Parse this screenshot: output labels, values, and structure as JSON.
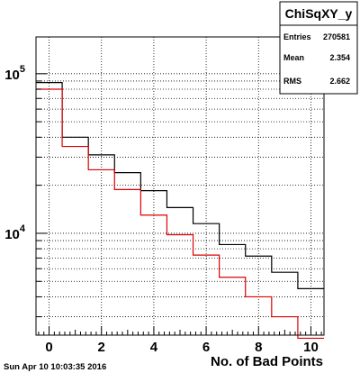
{
  "footer": {
    "timestamp": "Sun Apr 10 10:03:35 2016"
  },
  "stats_box": {
    "title": "ChiSqXY_y",
    "rows": [
      {
        "label": "Entries",
        "value": "270581"
      },
      {
        "label": "Mean",
        "value": "2.354"
      },
      {
        "label": "RMS",
        "value": "2.662"
      }
    ]
  },
  "chart_data": {
    "type": "histogram",
    "title": "",
    "xlabel": "No. of Bad Points",
    "ylabel": "",
    "xlim": [
      -0.5,
      10.5
    ],
    "ylim": [
      2300,
      170000
    ],
    "yscale": "log",
    "grid": true,
    "x_ticks": [
      0,
      2,
      4,
      6,
      8,
      10
    ],
    "y_tick_labels": [
      {
        "value": 10000,
        "base": "10",
        "exp": "4"
      },
      {
        "value": 100000,
        "base": "10",
        "exp": "5"
      }
    ],
    "bin_edges": [
      -0.5,
      0.5,
      1.5,
      2.5,
      3.5,
      4.5,
      5.5,
      6.5,
      7.5,
      8.5,
      9.5,
      10.5
    ],
    "series": [
      {
        "color": "#000000",
        "values": [
          88000,
          40000,
          31000,
          24000,
          18500,
          14500,
          11500,
          8500,
          7200,
          5700,
          4500
        ]
      },
      {
        "color": "#dd0000",
        "values": [
          80000,
          35000,
          25000,
          18800,
          13000,
          9800,
          7300,
          5300,
          4000,
          3000,
          2200
        ]
      }
    ]
  }
}
